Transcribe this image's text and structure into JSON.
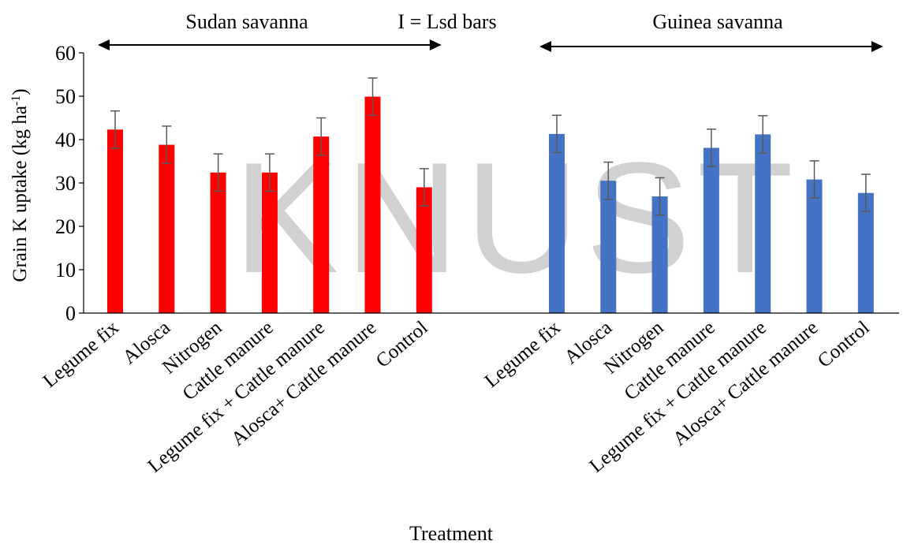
{
  "chart_data": {
    "type": "bar",
    "xlabel": "Treatment",
    "ylabel": "Grain K uptake (kg ha",
    "ylabel_sup": "-1",
    "ylabel_close": ")",
    "ylim": [
      0,
      60
    ],
    "yticks": [
      0,
      10,
      20,
      30,
      40,
      50,
      60
    ],
    "grid": false,
    "legend_note": "I = Lsd bars",
    "watermark": "KNUST",
    "groups": [
      {
        "name": "Sudan savanna",
        "color": "#ff0000",
        "categories": [
          "Legume fix",
          "Alosca",
          "Nitrogen",
          "Cattle manure",
          "Legume fix + Cattle manure",
          "Alosca+ Cattle manure",
          "Control"
        ],
        "values": [
          42.3,
          38.8,
          32.4,
          32.4,
          40.7,
          49.9,
          29.0
        ],
        "error": 4.3
      },
      {
        "name": "Guinea savanna",
        "color": "#4472c4",
        "categories": [
          "Legume fix",
          "Alosca",
          "Nitrogen",
          "Cattle manure",
          "Legume fix + Cattle manure",
          "Alosca+ Cattle manure",
          "Control"
        ],
        "values": [
          41.3,
          30.5,
          26.9,
          38.1,
          41.2,
          30.8,
          27.7
        ],
        "error": 4.3
      }
    ]
  }
}
